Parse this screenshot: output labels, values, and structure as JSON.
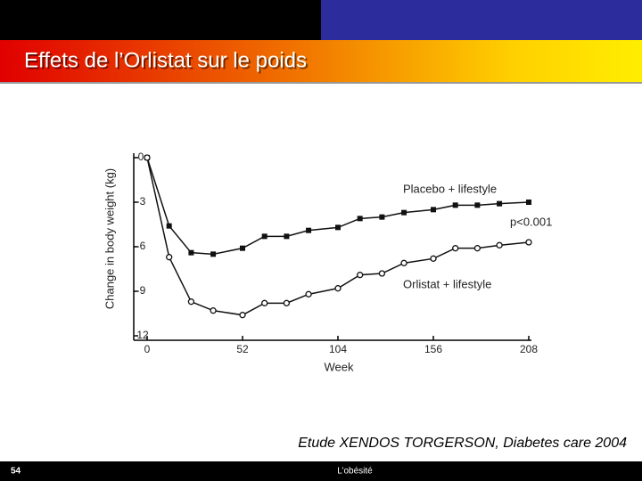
{
  "slide": {
    "title": "Effets de l’Orlistat sur le poids",
    "caption": "Etude XENDOS TORGERSON, Diabetes care 2004",
    "page_number": "54",
    "footer": "L’obésité"
  },
  "chart_data": {
    "type": "line",
    "x_label": "Week",
    "y_label": "Change in body weight (kg)",
    "annotations": [
      "p<0.001"
    ],
    "x": [
      0,
      12,
      24,
      36,
      52,
      64,
      76,
      88,
      104,
      116,
      128,
      140,
      156,
      168,
      180,
      192,
      208
    ],
    "series": [
      {
        "name": "Placebo + lifestyle",
        "color": "#111111",
        "marker": "square",
        "values": [
          0,
          -4.6,
          -6.4,
          -6.5,
          -6.1,
          -5.3,
          -5.3,
          -4.9,
          -4.7,
          -4.1,
          -4.0,
          -3.7,
          -3.5,
          -3.2,
          -3.2,
          -3.1,
          -3.0
        ]
      },
      {
        "name": "Orlistat + lifestyle",
        "color": "#111111",
        "marker": "circle",
        "values": [
          0,
          -6.7,
          -9.7,
          -10.3,
          -10.6,
          -9.8,
          -9.8,
          -9.2,
          -8.8,
          -7.9,
          -7.8,
          -7.1,
          -6.8,
          -6.1,
          -6.1,
          -5.9,
          -5.7
        ]
      }
    ],
    "xlim": [
      0,
      208
    ],
    "xticks": [
      0,
      52,
      104,
      156,
      208
    ],
    "ylim": [
      -12,
      0
    ],
    "yticks": [
      0,
      -3,
      -6,
      -9,
      -12
    ]
  }
}
